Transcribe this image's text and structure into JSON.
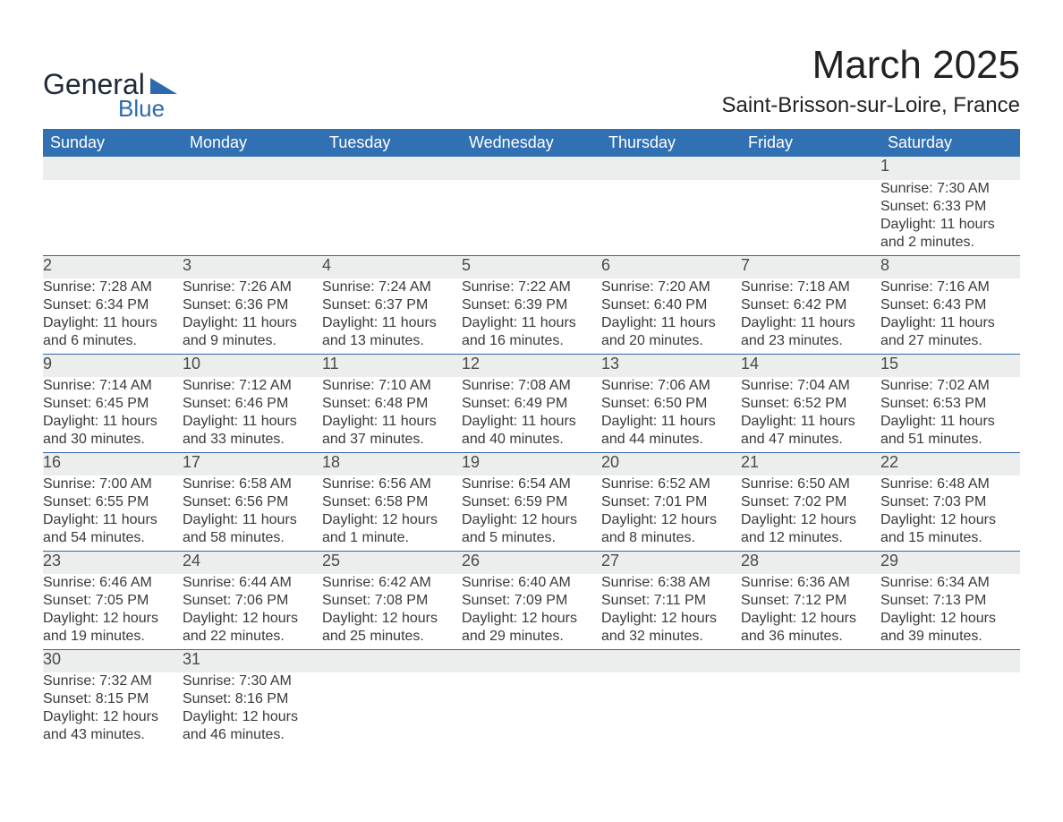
{
  "logo": {
    "word1": "General",
    "word2": "Blue",
    "tri_color": "#2d6aad"
  },
  "title": "March 2025",
  "location": "Saint-Brisson-sur-Loire, France",
  "colors": {
    "header_bg": "#3171b3",
    "header_text": "#ffffff",
    "daynum_bg": "#eceded",
    "row_border": "#2d6aad",
    "body_text": "#3a3a3a"
  },
  "weekdays": [
    "Sunday",
    "Monday",
    "Tuesday",
    "Wednesday",
    "Thursday",
    "Friday",
    "Saturday"
  ],
  "weeks": [
    [
      null,
      null,
      null,
      null,
      null,
      null,
      {
        "n": "1",
        "sr": "7:30 AM",
        "ss": "6:33 PM",
        "dl": "11 hours and 2 minutes."
      }
    ],
    [
      {
        "n": "2",
        "sr": "7:28 AM",
        "ss": "6:34 PM",
        "dl": "11 hours and 6 minutes."
      },
      {
        "n": "3",
        "sr": "7:26 AM",
        "ss": "6:36 PM",
        "dl": "11 hours and 9 minutes."
      },
      {
        "n": "4",
        "sr": "7:24 AM",
        "ss": "6:37 PM",
        "dl": "11 hours and 13 minutes."
      },
      {
        "n": "5",
        "sr": "7:22 AM",
        "ss": "6:39 PM",
        "dl": "11 hours and 16 minutes."
      },
      {
        "n": "6",
        "sr": "7:20 AM",
        "ss": "6:40 PM",
        "dl": "11 hours and 20 minutes."
      },
      {
        "n": "7",
        "sr": "7:18 AM",
        "ss": "6:42 PM",
        "dl": "11 hours and 23 minutes."
      },
      {
        "n": "8",
        "sr": "7:16 AM",
        "ss": "6:43 PM",
        "dl": "11 hours and 27 minutes."
      }
    ],
    [
      {
        "n": "9",
        "sr": "7:14 AM",
        "ss": "6:45 PM",
        "dl": "11 hours and 30 minutes."
      },
      {
        "n": "10",
        "sr": "7:12 AM",
        "ss": "6:46 PM",
        "dl": "11 hours and 33 minutes."
      },
      {
        "n": "11",
        "sr": "7:10 AM",
        "ss": "6:48 PM",
        "dl": "11 hours and 37 minutes."
      },
      {
        "n": "12",
        "sr": "7:08 AM",
        "ss": "6:49 PM",
        "dl": "11 hours and 40 minutes."
      },
      {
        "n": "13",
        "sr": "7:06 AM",
        "ss": "6:50 PM",
        "dl": "11 hours and 44 minutes."
      },
      {
        "n": "14",
        "sr": "7:04 AM",
        "ss": "6:52 PM",
        "dl": "11 hours and 47 minutes."
      },
      {
        "n": "15",
        "sr": "7:02 AM",
        "ss": "6:53 PM",
        "dl": "11 hours and 51 minutes."
      }
    ],
    [
      {
        "n": "16",
        "sr": "7:00 AM",
        "ss": "6:55 PM",
        "dl": "11 hours and 54 minutes."
      },
      {
        "n": "17",
        "sr": "6:58 AM",
        "ss": "6:56 PM",
        "dl": "11 hours and 58 minutes."
      },
      {
        "n": "18",
        "sr": "6:56 AM",
        "ss": "6:58 PM",
        "dl": "12 hours and 1 minute."
      },
      {
        "n": "19",
        "sr": "6:54 AM",
        "ss": "6:59 PM",
        "dl": "12 hours and 5 minutes."
      },
      {
        "n": "20",
        "sr": "6:52 AM",
        "ss": "7:01 PM",
        "dl": "12 hours and 8 minutes."
      },
      {
        "n": "21",
        "sr": "6:50 AM",
        "ss": "7:02 PM",
        "dl": "12 hours and 12 minutes."
      },
      {
        "n": "22",
        "sr": "6:48 AM",
        "ss": "7:03 PM",
        "dl": "12 hours and 15 minutes."
      }
    ],
    [
      {
        "n": "23",
        "sr": "6:46 AM",
        "ss": "7:05 PM",
        "dl": "12 hours and 19 minutes."
      },
      {
        "n": "24",
        "sr": "6:44 AM",
        "ss": "7:06 PM",
        "dl": "12 hours and 22 minutes."
      },
      {
        "n": "25",
        "sr": "6:42 AM",
        "ss": "7:08 PM",
        "dl": "12 hours and 25 minutes."
      },
      {
        "n": "26",
        "sr": "6:40 AM",
        "ss": "7:09 PM",
        "dl": "12 hours and 29 minutes."
      },
      {
        "n": "27",
        "sr": "6:38 AM",
        "ss": "7:11 PM",
        "dl": "12 hours and 32 minutes."
      },
      {
        "n": "28",
        "sr": "6:36 AM",
        "ss": "7:12 PM",
        "dl": "12 hours and 36 minutes."
      },
      {
        "n": "29",
        "sr": "6:34 AM",
        "ss": "7:13 PM",
        "dl": "12 hours and 39 minutes."
      }
    ],
    [
      {
        "n": "30",
        "sr": "7:32 AM",
        "ss": "8:15 PM",
        "dl": "12 hours and 43 minutes."
      },
      {
        "n": "31",
        "sr": "7:30 AM",
        "ss": "8:16 PM",
        "dl": "12 hours and 46 minutes."
      },
      null,
      null,
      null,
      null,
      null
    ]
  ],
  "labels": {
    "sunrise": "Sunrise: ",
    "sunset": "Sunset: ",
    "daylight": "Daylight: "
  }
}
